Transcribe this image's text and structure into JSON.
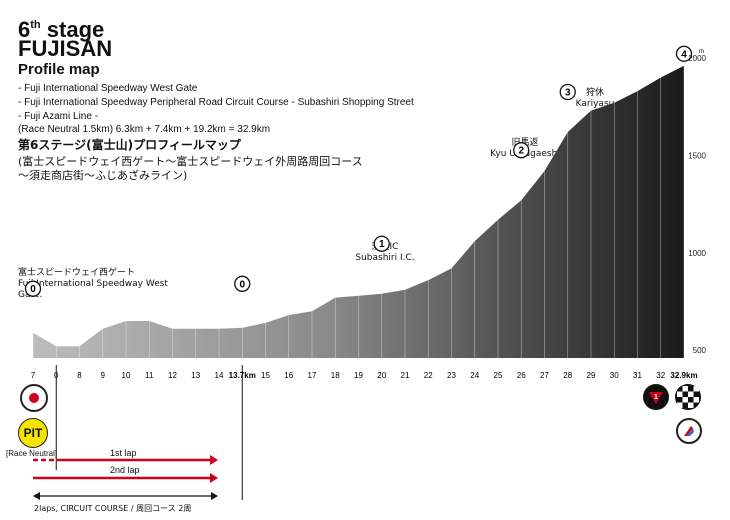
{
  "header": {
    "stage_number": "6",
    "stage_suffix": "th",
    "stage_word": "stage",
    "name": "FUJISAN",
    "subtitle": "Profile map",
    "route_lines": [
      "- Fuji International Speedway West Gate",
      "- Fuji International Speedway Peripheral Road Circuit Course - Subashiri Shopping Street",
      "- Fuji Azami Line -"
    ],
    "distance_note": "(Race Neutral 1.5km) 6.3km + 7.4km + 19.2km = 32.9km",
    "jp_title": "第6ステージ(富士山)プロフィールマップ",
    "jp_line2": "(富士スピードウェイ西ゲート〜富士スピードウェイ外周路周回コース",
    "jp_line3": "〜須走商店街〜ふじあざみライン)"
  },
  "waypoints": [
    {
      "jp": "富士スピードウェイ西ゲート",
      "en": "Fuji International Speedway West Gate.",
      "marker": "0"
    },
    {
      "jp": "",
      "en": "",
      "marker": "0"
    },
    {
      "jp": "須走IC",
      "en": "Subashiri I.C.",
      "marker": "1"
    },
    {
      "jp": "旧馬返",
      "en": "Kyu Umagaeshi",
      "marker": "2"
    },
    {
      "jp": "狩休",
      "en": "Kariyasu",
      "marker": "3"
    },
    {
      "jp": "",
      "en": "",
      "marker": "4"
    }
  ],
  "altitude_axis": {
    "unit": "m",
    "labels": [
      "2000",
      "1500",
      "1000",
      "500"
    ]
  },
  "x_ticks": [
    "7",
    "0",
    "8",
    "9",
    "10",
    "11",
    "12",
    "13",
    "14",
    "13.7km",
    "15",
    "16",
    "17",
    "18",
    "19",
    "20",
    "21",
    "22",
    "23",
    "24",
    "25",
    "26",
    "27",
    "28",
    "29",
    "30",
    "31",
    "32",
    "32.9km"
  ],
  "left_icons": {
    "pit_label": "PIT",
    "neutral_label": "[Race Neutral]"
  },
  "laps": {
    "lap1": "1st lap",
    "lap2": "2nd lap",
    "course": "2laps, CIRCUIT COURSE / 周回コース 2周"
  },
  "colors": {
    "lap_red": "#d0021b",
    "flag_red": "#d0021b",
    "pit_yellow": "#f5e400",
    "profile_dark": "#1a1a1a"
  },
  "chart_data": {
    "type": "area",
    "xlabel": "",
    "ylabel": "",
    "x_unit": "km",
    "y_unit": "m",
    "ylim": [
      460,
      2000
    ],
    "y_ticks": [
      500,
      1000,
      1500,
      2000
    ],
    "x": [
      7,
      0,
      8,
      9,
      10,
      11,
      12,
      13,
      14,
      13.7,
      15,
      16,
      17,
      18,
      19,
      20,
      21,
      22,
      23,
      24,
      25,
      26,
      27,
      28,
      29,
      30,
      31,
      32,
      32.9
    ],
    "elevation": [
      590,
      520,
      520,
      610,
      650,
      650,
      610,
      610,
      610,
      615,
      640,
      680,
      700,
      770,
      780,
      790,
      810,
      860,
      920,
      1060,
      1170,
      1270,
      1420,
      1620,
      1730,
      1770,
      1830,
      1900,
      1960
    ]
  }
}
